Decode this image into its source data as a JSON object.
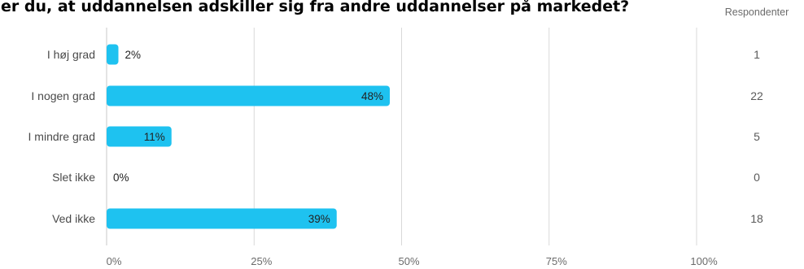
{
  "title": "er du, at uddannelsen adskiller sig fra andre uddannelser på markedet?",
  "chart_data": {
    "type": "bar",
    "orientation": "horizontal",
    "title": "er du, at uddannelsen adskiller sig fra andre uddannelser på markedet?",
    "categories": [
      "I høj grad",
      "I nogen grad",
      "I mindre grad",
      "Slet ikke",
      "Ved ikke"
    ],
    "values": [
      2,
      48,
      11,
      0,
      39
    ],
    "value_labels": [
      "2%",
      "48%",
      "11%",
      "0%",
      "39%"
    ],
    "respondents_header": "Respondenter",
    "respondents": [
      "1",
      "22",
      "5",
      "0",
      "18"
    ],
    "x_ticks": [
      "0%",
      "25%",
      "50%",
      "75%",
      "100%"
    ],
    "xlim": [
      0,
      100
    ],
    "grid": true,
    "bar_color": "#1ec2f0",
    "grid_color": "#d9d9d9"
  }
}
